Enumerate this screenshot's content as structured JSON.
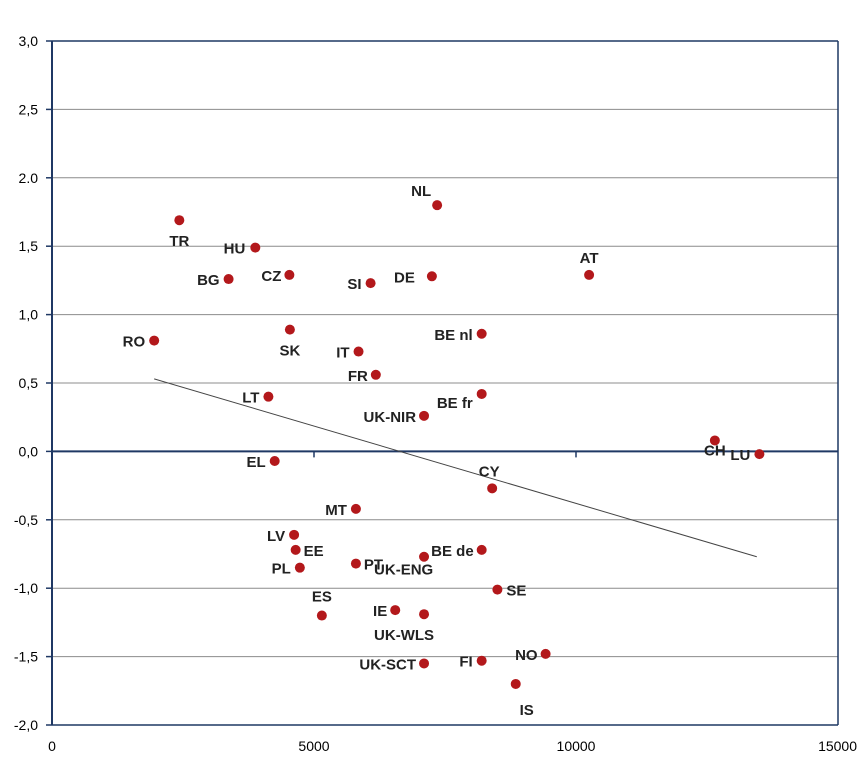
{
  "chart_data": {
    "type": "scatter",
    "title": "",
    "xlabel": "",
    "ylabel": "",
    "xlim": [
      0,
      15000
    ],
    "ylim": [
      -2.0,
      3.0
    ],
    "x_ticks": [
      0,
      5000,
      10000,
      15000
    ],
    "x_tick_labels": [
      "0",
      "5000",
      "10000",
      "15000"
    ],
    "y_ticks": [
      3.0,
      2.5,
      2.0,
      1.5,
      1.0,
      0.5,
      0.0,
      -0.5,
      -1.0,
      -1.5,
      -2.0
    ],
    "y_tick_labels": [
      "3,0",
      "2,5",
      "2.0",
      "1,5",
      "1,0",
      "0,5",
      "0,0",
      "-0,5",
      "-1,0",
      "-1,5",
      "-2,0"
    ],
    "grid": "horizontal",
    "colors": {
      "point": "#b3181b",
      "axis": "#1f3864",
      "grid": "#8c8c8c",
      "trend": "#444444"
    },
    "trendline": {
      "x": [
        1950,
        13450
      ],
      "y": [
        0.53,
        -0.77
      ]
    },
    "points": [
      {
        "label": "NL",
        "x": 7350,
        "y": 1.8
      },
      {
        "label": "TR",
        "x": 2430,
        "y": 1.69
      },
      {
        "label": "HU",
        "x": 3880,
        "y": 1.49
      },
      {
        "label": "BG",
        "x": 3370,
        "y": 1.26
      },
      {
        "label": "CZ",
        "x": 4530,
        "y": 1.29
      },
      {
        "label": "SI",
        "x": 6080,
        "y": 1.23
      },
      {
        "label": "DE",
        "x": 7250,
        "y": 1.28
      },
      {
        "label": "AT",
        "x": 10250,
        "y": 1.29
      },
      {
        "label": "RO",
        "x": 1950,
        "y": 0.81
      },
      {
        "label": "SK",
        "x": 4540,
        "y": 0.89
      },
      {
        "label": "IT",
        "x": 5850,
        "y": 0.73
      },
      {
        "label": "BE nl",
        "x": 8200,
        "y": 0.86
      },
      {
        "label": "FR",
        "x": 6180,
        "y": 0.56
      },
      {
        "label": "LT",
        "x": 4130,
        "y": 0.4
      },
      {
        "label": "BE fr",
        "x": 8200,
        "y": 0.42
      },
      {
        "label": "UK-NIR",
        "x": 7100,
        "y": 0.26
      },
      {
        "label": "CH",
        "x": 12650,
        "y": 0.08
      },
      {
        "label": "LU",
        "x": 13500,
        "y": -0.02
      },
      {
        "label": "EL",
        "x": 4250,
        "y": -0.07
      },
      {
        "label": "CY",
        "x": 8400,
        "y": -0.27
      },
      {
        "label": "MT",
        "x": 5800,
        "y": -0.42
      },
      {
        "label": "LV",
        "x": 4620,
        "y": -0.61
      },
      {
        "label": "EE",
        "x": 4650,
        "y": -0.72
      },
      {
        "label": "BE de",
        "x": 8200,
        "y": -0.72
      },
      {
        "label": "UK-ENG",
        "x": 7100,
        "y": -0.77
      },
      {
        "label": "PL",
        "x": 4730,
        "y": -0.85
      },
      {
        "label": "PT",
        "x": 5800,
        "y": -0.82
      },
      {
        "label": "SE",
        "x": 8500,
        "y": -1.01
      },
      {
        "label": "ES",
        "x": 5150,
        "y": -1.2
      },
      {
        "label": "IE",
        "x": 6550,
        "y": -1.16
      },
      {
        "label": "UK-WLS",
        "x": 7100,
        "y": -1.19
      },
      {
        "label": "NO",
        "x": 9420,
        "y": -1.48
      },
      {
        "label": "FI",
        "x": 8200,
        "y": -1.53
      },
      {
        "label": "UK-SCT",
        "x": 7100,
        "y": -1.55
      },
      {
        "label": "IS",
        "x": 8850,
        "y": -1.7
      }
    ]
  }
}
